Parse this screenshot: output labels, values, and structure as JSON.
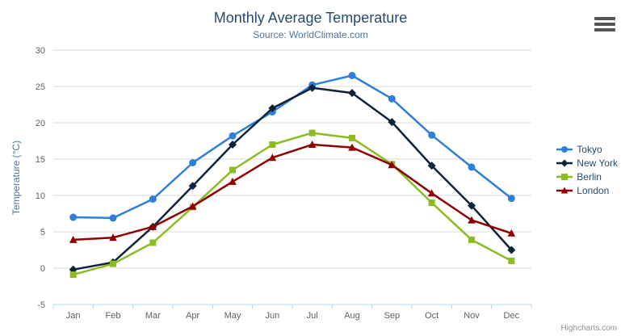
{
  "chart_data": {
    "type": "line",
    "title": "Monthly Average Temperature",
    "subtitle": "Source: WorldClimate.com",
    "xlabel": "",
    "ylabel": "Temperature (°C)",
    "categories": [
      "Jan",
      "Feb",
      "Mar",
      "Apr",
      "May",
      "Jun",
      "Jul",
      "Aug",
      "Sep",
      "Oct",
      "Nov",
      "Dec"
    ],
    "series": [
      {
        "name": "Tokyo",
        "color": "#2f7ed8",
        "marker": "circle",
        "values": [
          7.0,
          6.9,
          9.5,
          14.5,
          18.2,
          21.5,
          25.2,
          26.5,
          23.3,
          18.3,
          13.9,
          9.6
        ]
      },
      {
        "name": "New York",
        "color": "#0d233a",
        "marker": "diamond",
        "values": [
          -0.2,
          0.8,
          5.7,
          11.3,
          17.0,
          22.0,
          24.8,
          24.1,
          20.1,
          14.1,
          8.6,
          2.5
        ]
      },
      {
        "name": "Berlin",
        "color": "#8bbc21",
        "marker": "square",
        "values": [
          -0.9,
          0.6,
          3.5,
          8.4,
          13.5,
          17.0,
          18.6,
          17.9,
          14.3,
          9.0,
          3.9,
          1.0
        ]
      },
      {
        "name": "London",
        "color": "#910000",
        "marker": "triangle",
        "values": [
          3.9,
          4.2,
          5.7,
          8.5,
          11.9,
          15.2,
          17.0,
          16.6,
          14.2,
          10.3,
          6.6,
          4.8
        ]
      }
    ],
    "ylim": [
      -5,
      30
    ],
    "ytick_step": 5,
    "grid": true,
    "legend_position": "right",
    "colors": {
      "title": "#274b6d",
      "subtitle": "#4d759e",
      "axis_label": "#606060",
      "axis_line": "#c0d0e0",
      "gridline": "#d8d8d8",
      "legend_text": "#274b6d"
    }
  },
  "credits": {
    "label": "Highcharts.com"
  }
}
